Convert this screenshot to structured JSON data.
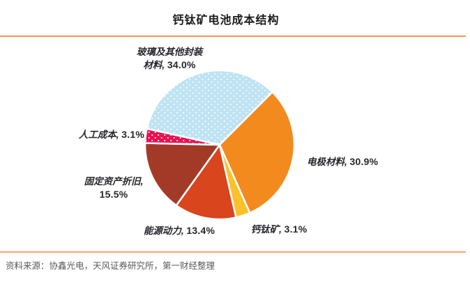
{
  "header": {
    "title": "钙钛矿电池成本结构"
  },
  "footer": {
    "source": "资料来源：协鑫光电，天风证券研究所，第一财经整理"
  },
  "chart_data": {
    "type": "pie",
    "title": "钙钛矿电池成本结构",
    "unit": "%",
    "legend_position": "none",
    "start_angle_deg_from_12": -77.5,
    "series": [
      {
        "name": "玻璃及其他封装材料",
        "value": 34.0,
        "color": "#BEE3F3",
        "pattern": "white-dots",
        "label_line1": "玻璃及其他封装",
        "label_name": "材料, ",
        "label_value": "34.0%"
      },
      {
        "name": "电极材料",
        "value": 30.9,
        "color": "#F28A1E",
        "pattern": "solid",
        "label_name": "电极材料, ",
        "label_value": "30.9%"
      },
      {
        "name": "钙钛矿",
        "value": 3.1,
        "color": "#FBC12B",
        "pattern": "solid",
        "label_name": "钙钛矿, ",
        "label_value": "3.1%"
      },
      {
        "name": "能源动力",
        "value": 13.4,
        "color": "#D9451C",
        "pattern": "solid",
        "label_name": "能源动力, ",
        "label_value": "13.4%"
      },
      {
        "name": "固定资产折旧",
        "value": 15.5,
        "color": "#A33A28",
        "pattern": "solid",
        "label_line1": "固定资产折旧,",
        "label_value": "15.5%"
      },
      {
        "name": "人工成本",
        "value": 3.1,
        "color": "#EA1153",
        "pattern": "white-dots",
        "label_name": "人工成本, ",
        "label_value": "3.1%"
      }
    ],
    "colors": {
      "rule_top": "#F79A50",
      "rule_bottom": "#F9A468",
      "label_text": "#26262E",
      "source_text": "#595959",
      "slice_border": "#FFFFFF"
    }
  }
}
